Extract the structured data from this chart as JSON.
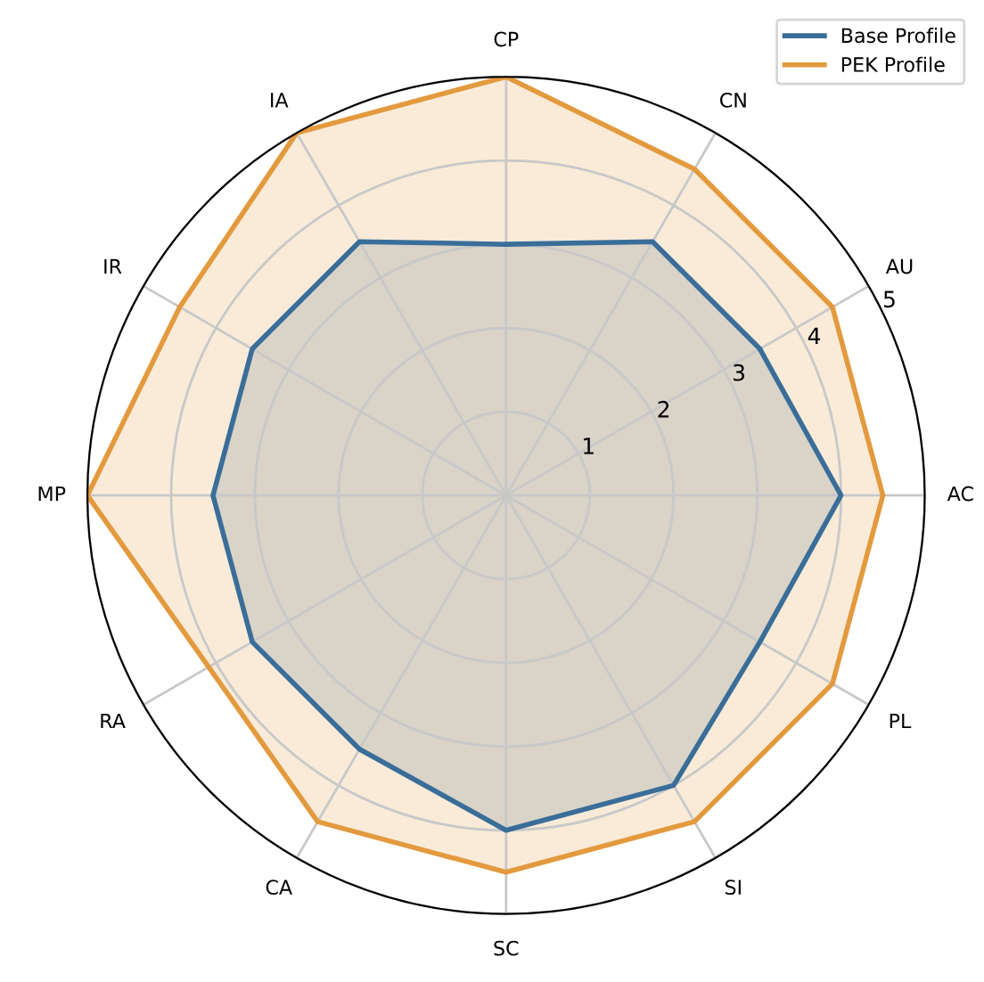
{
  "chart_data": {
    "type": "radar",
    "categories": [
      "CP",
      "CN",
      "AU",
      "AC",
      "PL",
      "SI",
      "SC",
      "CA",
      "RA",
      "MP",
      "IR",
      "IA"
    ],
    "series": [
      {
        "name": "Base Profile",
        "color": "#3a6e99",
        "values": [
          3.0,
          3.5,
          3.5,
          4.0,
          3.5,
          4.0,
          4.0,
          3.5,
          3.5,
          3.5,
          3.5,
          3.5
        ]
      },
      {
        "name": "PEK Profile",
        "color": "#e39a3e",
        "values": [
          5.0,
          4.5,
          4.5,
          4.5,
          4.5,
          4.5,
          4.5,
          4.5,
          4.1,
          5.0,
          4.5,
          5.0
        ]
      }
    ],
    "ylim": [
      0,
      5
    ],
    "yticks": [
      1,
      2,
      3,
      4,
      5
    ],
    "grid": true,
    "legend": "top right"
  }
}
